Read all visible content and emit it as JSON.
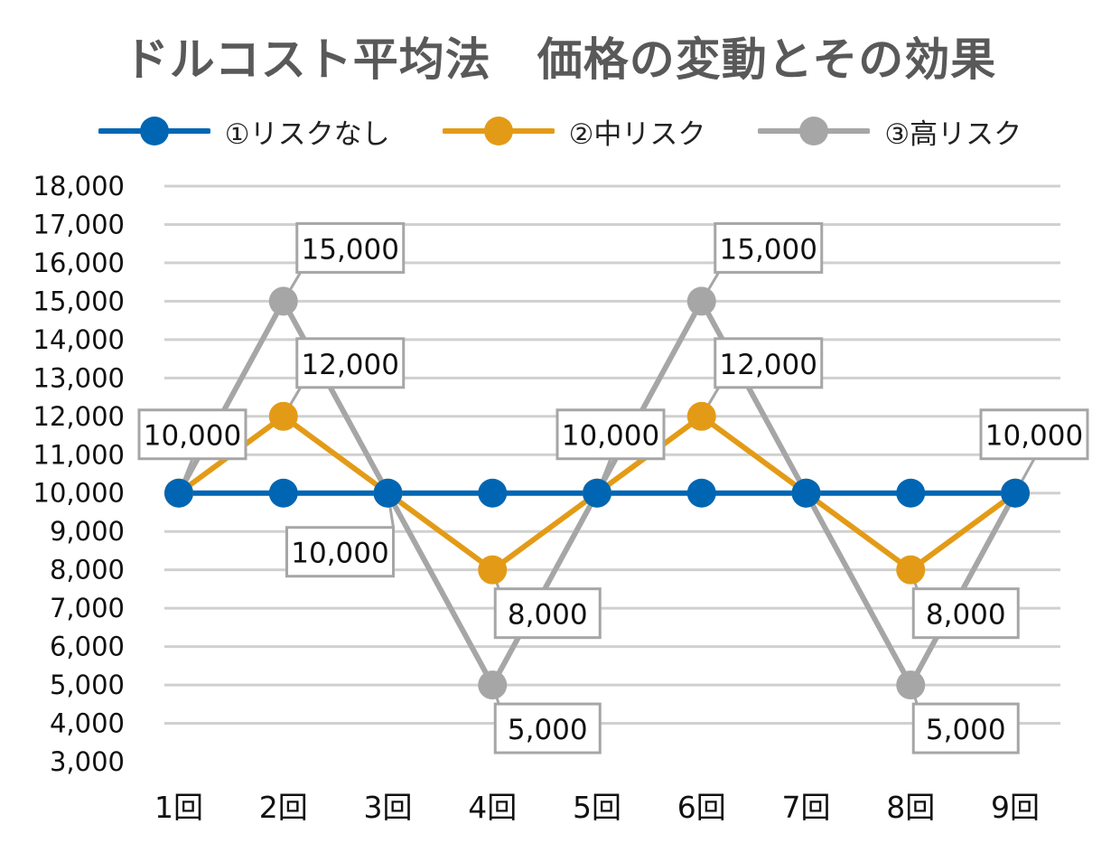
{
  "chart_data": {
    "type": "line",
    "title": "ドルコスト平均法　価格の変動とその効果",
    "categories": [
      "1回",
      "2回",
      "3回",
      "4回",
      "5回",
      "6回",
      "7回",
      "8回",
      "9回"
    ],
    "ylim": [
      3000,
      18000
    ],
    "yticks": [
      "18,000",
      "17,000",
      "16,000",
      "15,000",
      "14,000",
      "13,000",
      "12,000",
      "11,000",
      "10,000",
      "9,000",
      "8,000",
      "7,000",
      "6,000",
      "5,000",
      "4,000",
      "3,000"
    ],
    "grid": true,
    "legend_position": "top",
    "series": [
      {
        "name": "①リスクなし",
        "color": "#0066B3",
        "values": [
          10000,
          10000,
          10000,
          10000,
          10000,
          10000,
          10000,
          10000,
          10000
        ]
      },
      {
        "name": "②中リスク",
        "color": "#E39B17",
        "values": [
          10000,
          12000,
          10000,
          8000,
          10000,
          12000,
          10000,
          8000,
          10000
        ]
      },
      {
        "name": "③高リスク",
        "color": "#A6A6A6",
        "values": [
          10000,
          15000,
          10000,
          5000,
          10000,
          15000,
          10000,
          5000,
          10000
        ]
      }
    ],
    "data_labels": [
      {
        "series": 2,
        "index": 1,
        "text": "15,000"
      },
      {
        "series": 1,
        "index": 1,
        "text": "12,000"
      },
      {
        "series": 0,
        "index": 0,
        "text": "10,000"
      },
      {
        "series": 2,
        "index": 2,
        "text": "10,000"
      },
      {
        "series": 2,
        "index": 3,
        "text": "5,000"
      },
      {
        "series": 1,
        "index": 3,
        "text": "8,000"
      },
      {
        "series": 0,
        "index": 4,
        "text": "10,000"
      },
      {
        "series": 2,
        "index": 5,
        "text": "15,000"
      },
      {
        "series": 1,
        "index": 5,
        "text": "12,000"
      },
      {
        "series": 2,
        "index": 7,
        "text": "5,000"
      },
      {
        "series": 1,
        "index": 7,
        "text": "8,000"
      },
      {
        "series": 0,
        "index": 8,
        "text": "10,000"
      }
    ]
  }
}
